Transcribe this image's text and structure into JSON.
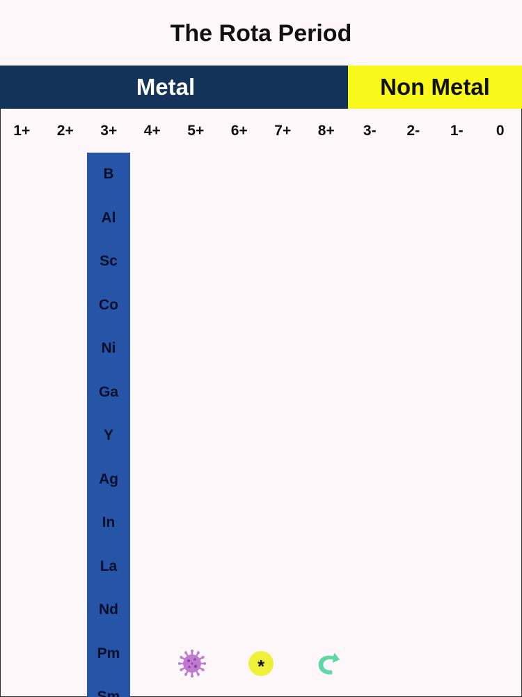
{
  "title": "The Rota Period",
  "categories": {
    "metal": {
      "label": "Metal",
      "color": "#133458"
    },
    "nonmetal": {
      "label": "Non Metal",
      "color": "#f8f81a"
    }
  },
  "charges": [
    "1+",
    "2+",
    "3+",
    "4+",
    "5+",
    "6+",
    "7+",
    "8+",
    "3-",
    "2-",
    "1-",
    "0"
  ],
  "column": {
    "charge": "3+",
    "color": "#2655a8",
    "elements": [
      "B",
      "Al",
      "Sc",
      "Co",
      "Ni",
      "Ga",
      "Y",
      "Ag",
      "In",
      "La",
      "Nd",
      "Pm",
      "Sm"
    ]
  },
  "tools": [
    {
      "name": "virus-icon",
      "color": "#c07ad0"
    },
    {
      "name": "star-icon",
      "symbol": "*",
      "color": "#eef03a"
    },
    {
      "name": "arrow-icon",
      "color": "#5fd8a8"
    }
  ]
}
